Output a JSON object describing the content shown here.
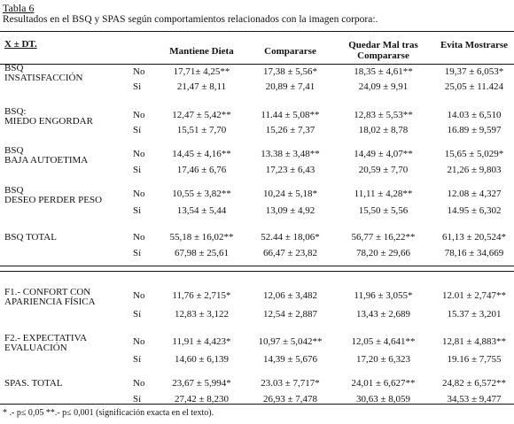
{
  "title": "Tabla 6",
  "caption": "Resultados en el BSQ y SPAS según comportamientos relacionados con la imagen corpora:.",
  "header": {
    "stat": "X ± DT.",
    "cols": [
      "Mantiene Dieta",
      "Compararse",
      "Quedar Mal tras Compararse",
      "Evita Mostrarse"
    ]
  },
  "rows": [
    {
      "label": "BSQ\nINSATISFACCIÓN",
      "grp": "No",
      "v": [
        "17,71± 4,25**",
        "17,38 ± 5,56*",
        "18,35 ± 4,61**",
        "19,37 ± 6,053*"
      ]
    },
    {
      "label": "",
      "grp": "Si",
      "v": [
        "21,47 ± 8,11",
        "20,89 ± 7,41",
        "24,09 ± 9,91",
        "25,05 ± 11.424"
      ]
    },
    {
      "label": "BSQ:\nMIEDO ENGORDAR",
      "grp": "No",
      "v": [
        "12,47 ± 5,42**",
        "11.44 ± 5,08**",
        "12,83 ± 5,53**",
        "14.03 ± 6,510"
      ]
    },
    {
      "label": "",
      "grp": "Sí",
      "v": [
        "15,51 ± 7,70",
        "15,26 ± 7,37",
        "18,02 ± 8,78",
        "16.89 ± 9,597"
      ]
    },
    {
      "label": "BSQ\nBAJA AUTOETIMA",
      "grp": "No",
      "v": [
        "14,45 ± 4,16**",
        "13.38 ± 3,48**",
        "14,49 ± 4,07**",
        "15,65 ± 5,029*"
      ]
    },
    {
      "label": "",
      "grp": "Si",
      "v": [
        "17,46 ± 6,76",
        "17,23 ± 6,43",
        "20,59 ± 7,70",
        "21,26 ± 9,803"
      ]
    },
    {
      "label": "BSQ\nDESEO PERDER PESO",
      "grp": "No",
      "v": [
        "10,55 ± 3,82**",
        "10,24 ± 5,18*",
        "11,11 ± 4,28**",
        "12.08 ± 4,327"
      ]
    },
    {
      "label": "",
      "grp": "Si",
      "v": [
        "13,54 ± 5,44",
        "13,09 ± 4,92",
        "15,50 ± 5,56",
        "14.95 ± 6,302"
      ]
    },
    {
      "label": "BSQ TOTAL",
      "grp": "No",
      "v": [
        "55,18 ± 16,02**",
        "52.44 ± 18,06*",
        "56,77 ± 16,22**",
        "61,13 ± 20,524*"
      ]
    },
    {
      "label": "",
      "grp": "Sí",
      "v": [
        "67,98 ± 25,61",
        "66,47 ± 23,82",
        "78,20 ± 29,66",
        "78,16 ± 34,669"
      ]
    },
    {
      "label": "F1.- CONFORT CON\nAPARIENCIA FÍSICA",
      "grp": "No",
      "v": [
        "11,76 ± 2,715*",
        "12,06 ± 3,482",
        "11,96 ± 3,055*",
        "12.01 ± 2,747**"
      ]
    },
    {
      "label": "",
      "grp": "Sí",
      "v": [
        "12,83 ± 3,122",
        "12,54 ± 2,887",
        "13,43 ± 2,689",
        "15.37 ± 3,201"
      ]
    },
    {
      "label": "F2.- EXPECTATIVA\nEVALUACIÓN",
      "grp": "No",
      "v": [
        "11,91 ± 4,423*",
        "10,97 ± 5,042**",
        "12,05 ± 4,641**",
        "12,81 ± 4,883**"
      ]
    },
    {
      "label": "",
      "grp": "Sí",
      "v": [
        "14,60 ± 6,139",
        "14,39 ± 5,676",
        "17,20 ± 6,323",
        "19.16 ± 7,755"
      ]
    },
    {
      "label": "SPAS. TOTAL",
      "grp": "No",
      "v": [
        "23,67 ± 5,994*",
        "23.03 ± 7,717*",
        "24,01 ± 6,627**",
        "24,82 ± 6,572**"
      ]
    },
    {
      "label": "",
      "grp": "Sí",
      "v": [
        "27,42 ± 8,230",
        "26,93 ± 7,478",
        "30,63 ± 8,059",
        "34,53 ± 9,477"
      ]
    }
  ],
  "footnote": "* .- p≤ 0,05 **.- p≤ 0,001 (significación exacta en el texto)."
}
